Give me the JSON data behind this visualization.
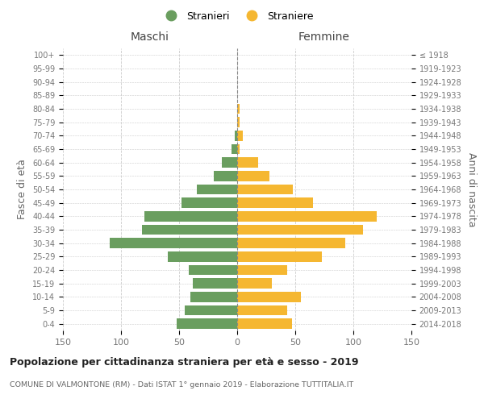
{
  "age_groups": [
    "0-4",
    "5-9",
    "10-14",
    "15-19",
    "20-24",
    "25-29",
    "30-34",
    "35-39",
    "40-44",
    "45-49",
    "50-54",
    "55-59",
    "60-64",
    "65-69",
    "70-74",
    "75-79",
    "80-84",
    "85-89",
    "90-94",
    "95-99",
    "100+"
  ],
  "birth_years": [
    "2014-2018",
    "2009-2013",
    "2004-2008",
    "1999-2003",
    "1994-1998",
    "1989-1993",
    "1984-1988",
    "1979-1983",
    "1974-1978",
    "1969-1973",
    "1964-1968",
    "1959-1963",
    "1954-1958",
    "1949-1953",
    "1944-1948",
    "1939-1943",
    "1934-1938",
    "1929-1933",
    "1924-1928",
    "1919-1923",
    "≤ 1918"
  ],
  "maschi": [
    52,
    45,
    40,
    38,
    42,
    60,
    110,
    82,
    80,
    48,
    35,
    20,
    13,
    5,
    2,
    0,
    0,
    0,
    0,
    0,
    0
  ],
  "femmine": [
    47,
    43,
    55,
    30,
    43,
    73,
    93,
    108,
    120,
    65,
    48,
    28,
    18,
    2,
    5,
    2,
    2,
    0,
    0,
    0,
    0
  ],
  "maschi_color": "#6a9e5f",
  "femmine_color": "#f5b731",
  "title": "Popolazione per cittadinanza straniera per età e sesso - 2019",
  "subtitle": "COMUNE DI VALMONTONE (RM) - Dati ISTAT 1° gennaio 2019 - Elaborazione TUTTITALIA.IT",
  "xlabel_left": "Maschi",
  "xlabel_right": "Femmine",
  "ylabel_left": "Fasce di età",
  "ylabel_right": "Anni di nascita",
  "legend_stranieri": "Stranieri",
  "legend_straniere": "Straniere",
  "xlim": 150,
  "background_color": "#ffffff",
  "grid_color": "#cccccc"
}
